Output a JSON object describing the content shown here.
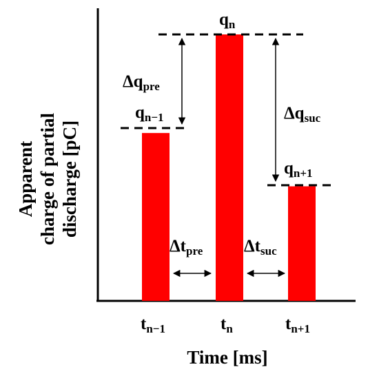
{
  "chart_data": {
    "type": "bar",
    "xlabel": "Time [ms]",
    "ylabel_lines": [
      "Apparent",
      "charge of partial",
      "discharge [pC]"
    ],
    "bar_color": "#ff0000",
    "bars": [
      {
        "label_main": "t",
        "label_sub": "n−1",
        "charge_main": "q",
        "charge_sub": "n−1",
        "relative_height": 0.63
      },
      {
        "label_main": "t",
        "label_sub": "n",
        "charge_main": "q",
        "charge_sub": "n",
        "relative_height": 1.0
      },
      {
        "label_main": "t",
        "label_sub": "n+1",
        "charge_main": "q",
        "charge_sub": "n+1",
        "relative_height": 0.43
      }
    ],
    "annotations": {
      "dq_pre": {
        "main": "Δq",
        "sub": "pre"
      },
      "dq_suc": {
        "main": "Δq",
        "sub": "suc"
      },
      "dt_pre": {
        "main": "Δt",
        "sub": "pre"
      },
      "dt_suc": {
        "main": "Δt",
        "sub": "suc"
      }
    }
  }
}
